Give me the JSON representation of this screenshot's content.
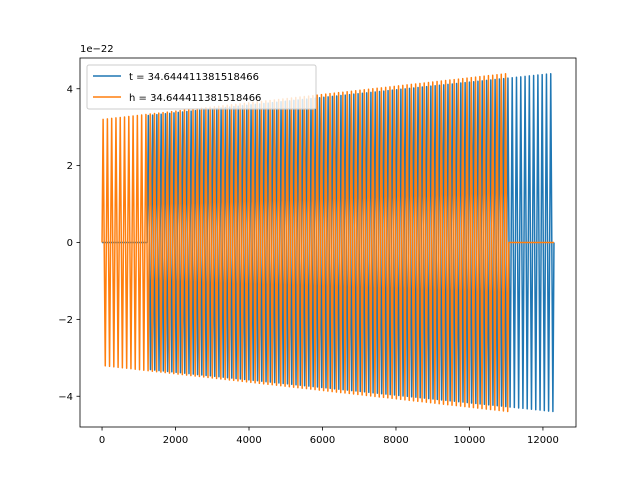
{
  "chart_data": {
    "type": "line",
    "title": "",
    "xlabel": "",
    "ylabel": "",
    "xlim": [
      -600,
      12900
    ],
    "ylim": [
      -4.8,
      4.8
    ],
    "y_offset_label": "1e−22",
    "x_ticks": [
      0,
      2000,
      4000,
      6000,
      8000,
      10000,
      12000
    ],
    "x_tick_labels": [
      "0",
      "2000",
      "4000",
      "6000",
      "8000",
      "10000",
      "12000"
    ],
    "y_ticks": [
      -4,
      -2,
      0,
      2,
      4
    ],
    "y_tick_labels": [
      "−4",
      "−2",
      "0",
      "2",
      "4"
    ],
    "grid": false,
    "legend_position": "upper-left",
    "series": [
      {
        "name": "t = 34.644411381518466",
        "color": "#1f77b4",
        "x_start": 0,
        "x_end": 12300,
        "signal_start": 1230,
        "amplitude_start": 3.3,
        "amplitude_end": 4.4,
        "cycles": 95
      },
      {
        "name": "h = 34.644411381518466",
        "color": "#ff7f0e",
        "x_start": 0,
        "x_end": 12300,
        "signal_start": 0,
        "signal_end": 11070,
        "amplitude_start": 3.2,
        "amplitude_end": 4.4,
        "cycles": 95
      }
    ]
  }
}
